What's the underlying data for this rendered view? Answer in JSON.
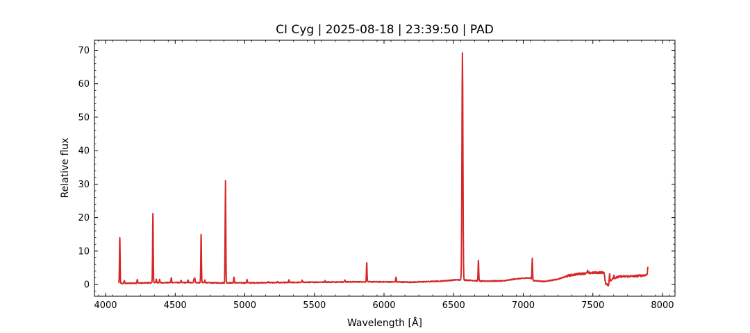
{
  "chart_data": {
    "type": "line",
    "title": "CI Cyg | 2025-08-18 | 23:39:50 | PAD",
    "xlabel": "Wavelength [Å]",
    "ylabel": "Relative flux",
    "xlim": [
      3920,
      8090
    ],
    "ylim": [
      -3.5,
      73
    ],
    "x_ticks": [
      4000,
      4500,
      5000,
      5500,
      6000,
      6500,
      7000,
      7500,
      8000
    ],
    "y_ticks": [
      0,
      10,
      20,
      30,
      40,
      50,
      60,
      70
    ],
    "grid": false,
    "line_color": "#d62728",
    "series": [
      {
        "continuum": [
          [
            4095,
            0.3
          ],
          [
            4300,
            0.5
          ],
          [
            4500,
            0.6
          ],
          [
            4800,
            0.5
          ],
          [
            5000,
            0.5
          ],
          [
            5300,
            0.6
          ],
          [
            5500,
            0.7
          ],
          [
            5800,
            0.8
          ],
          [
            6000,
            0.8
          ],
          [
            6200,
            0.7
          ],
          [
            6400,
            1.0
          ],
          [
            6520,
            1.4
          ],
          [
            6600,
            1.3
          ],
          [
            6700,
            1.0
          ],
          [
            6860,
            1.1
          ],
          [
            6950,
            1.7
          ],
          [
            7050,
            2.0
          ],
          [
            7070,
            1.2
          ],
          [
            7150,
            0.9
          ],
          [
            7250,
            1.6
          ],
          [
            7330,
            2.7
          ],
          [
            7400,
            3.2
          ],
          [
            7500,
            3.5
          ],
          [
            7580,
            3.6
          ],
          [
            7590,
            0.5
          ],
          [
            7610,
            -0.2
          ],
          [
            7640,
            1.8
          ],
          [
            7700,
            2.4
          ],
          [
            7800,
            2.5
          ],
          [
            7880,
            2.8
          ],
          [
            7895,
            3.0
          ]
        ],
        "lines": [
          [
            4102,
            14.0
          ],
          [
            4135,
            1.2
          ],
          [
            4228,
            1.5
          ],
          [
            4340,
            21.2
          ],
          [
            4364,
            1.6
          ],
          [
            4388,
            1.5
          ],
          [
            4472,
            2.0
          ],
          [
            4542,
            1.2
          ],
          [
            4592,
            1.3
          ],
          [
            4634,
            1.6
          ],
          [
            4641,
            2.0
          ],
          [
            4686,
            15.0
          ],
          [
            4713,
            1.4
          ],
          [
            4861,
            31.0
          ],
          [
            4922,
            2.2
          ],
          [
            5016,
            1.5
          ],
          [
            5169,
            0.8
          ],
          [
            5235,
            0.9
          ],
          [
            5317,
            1.3
          ],
          [
            5412,
            1.3
          ],
          [
            5577,
            1.1
          ],
          [
            5720,
            1.3
          ],
          [
            5876,
            6.5
          ],
          [
            6086,
            2.2
          ],
          [
            6563,
            69.2
          ],
          [
            6678,
            7.2
          ],
          [
            7065,
            7.8
          ],
          [
            7462,
            4.2
          ],
          [
            7620,
            3.2
          ],
          [
            7651,
            2.8
          ],
          [
            7895,
            5.3
          ]
        ]
      }
    ]
  }
}
